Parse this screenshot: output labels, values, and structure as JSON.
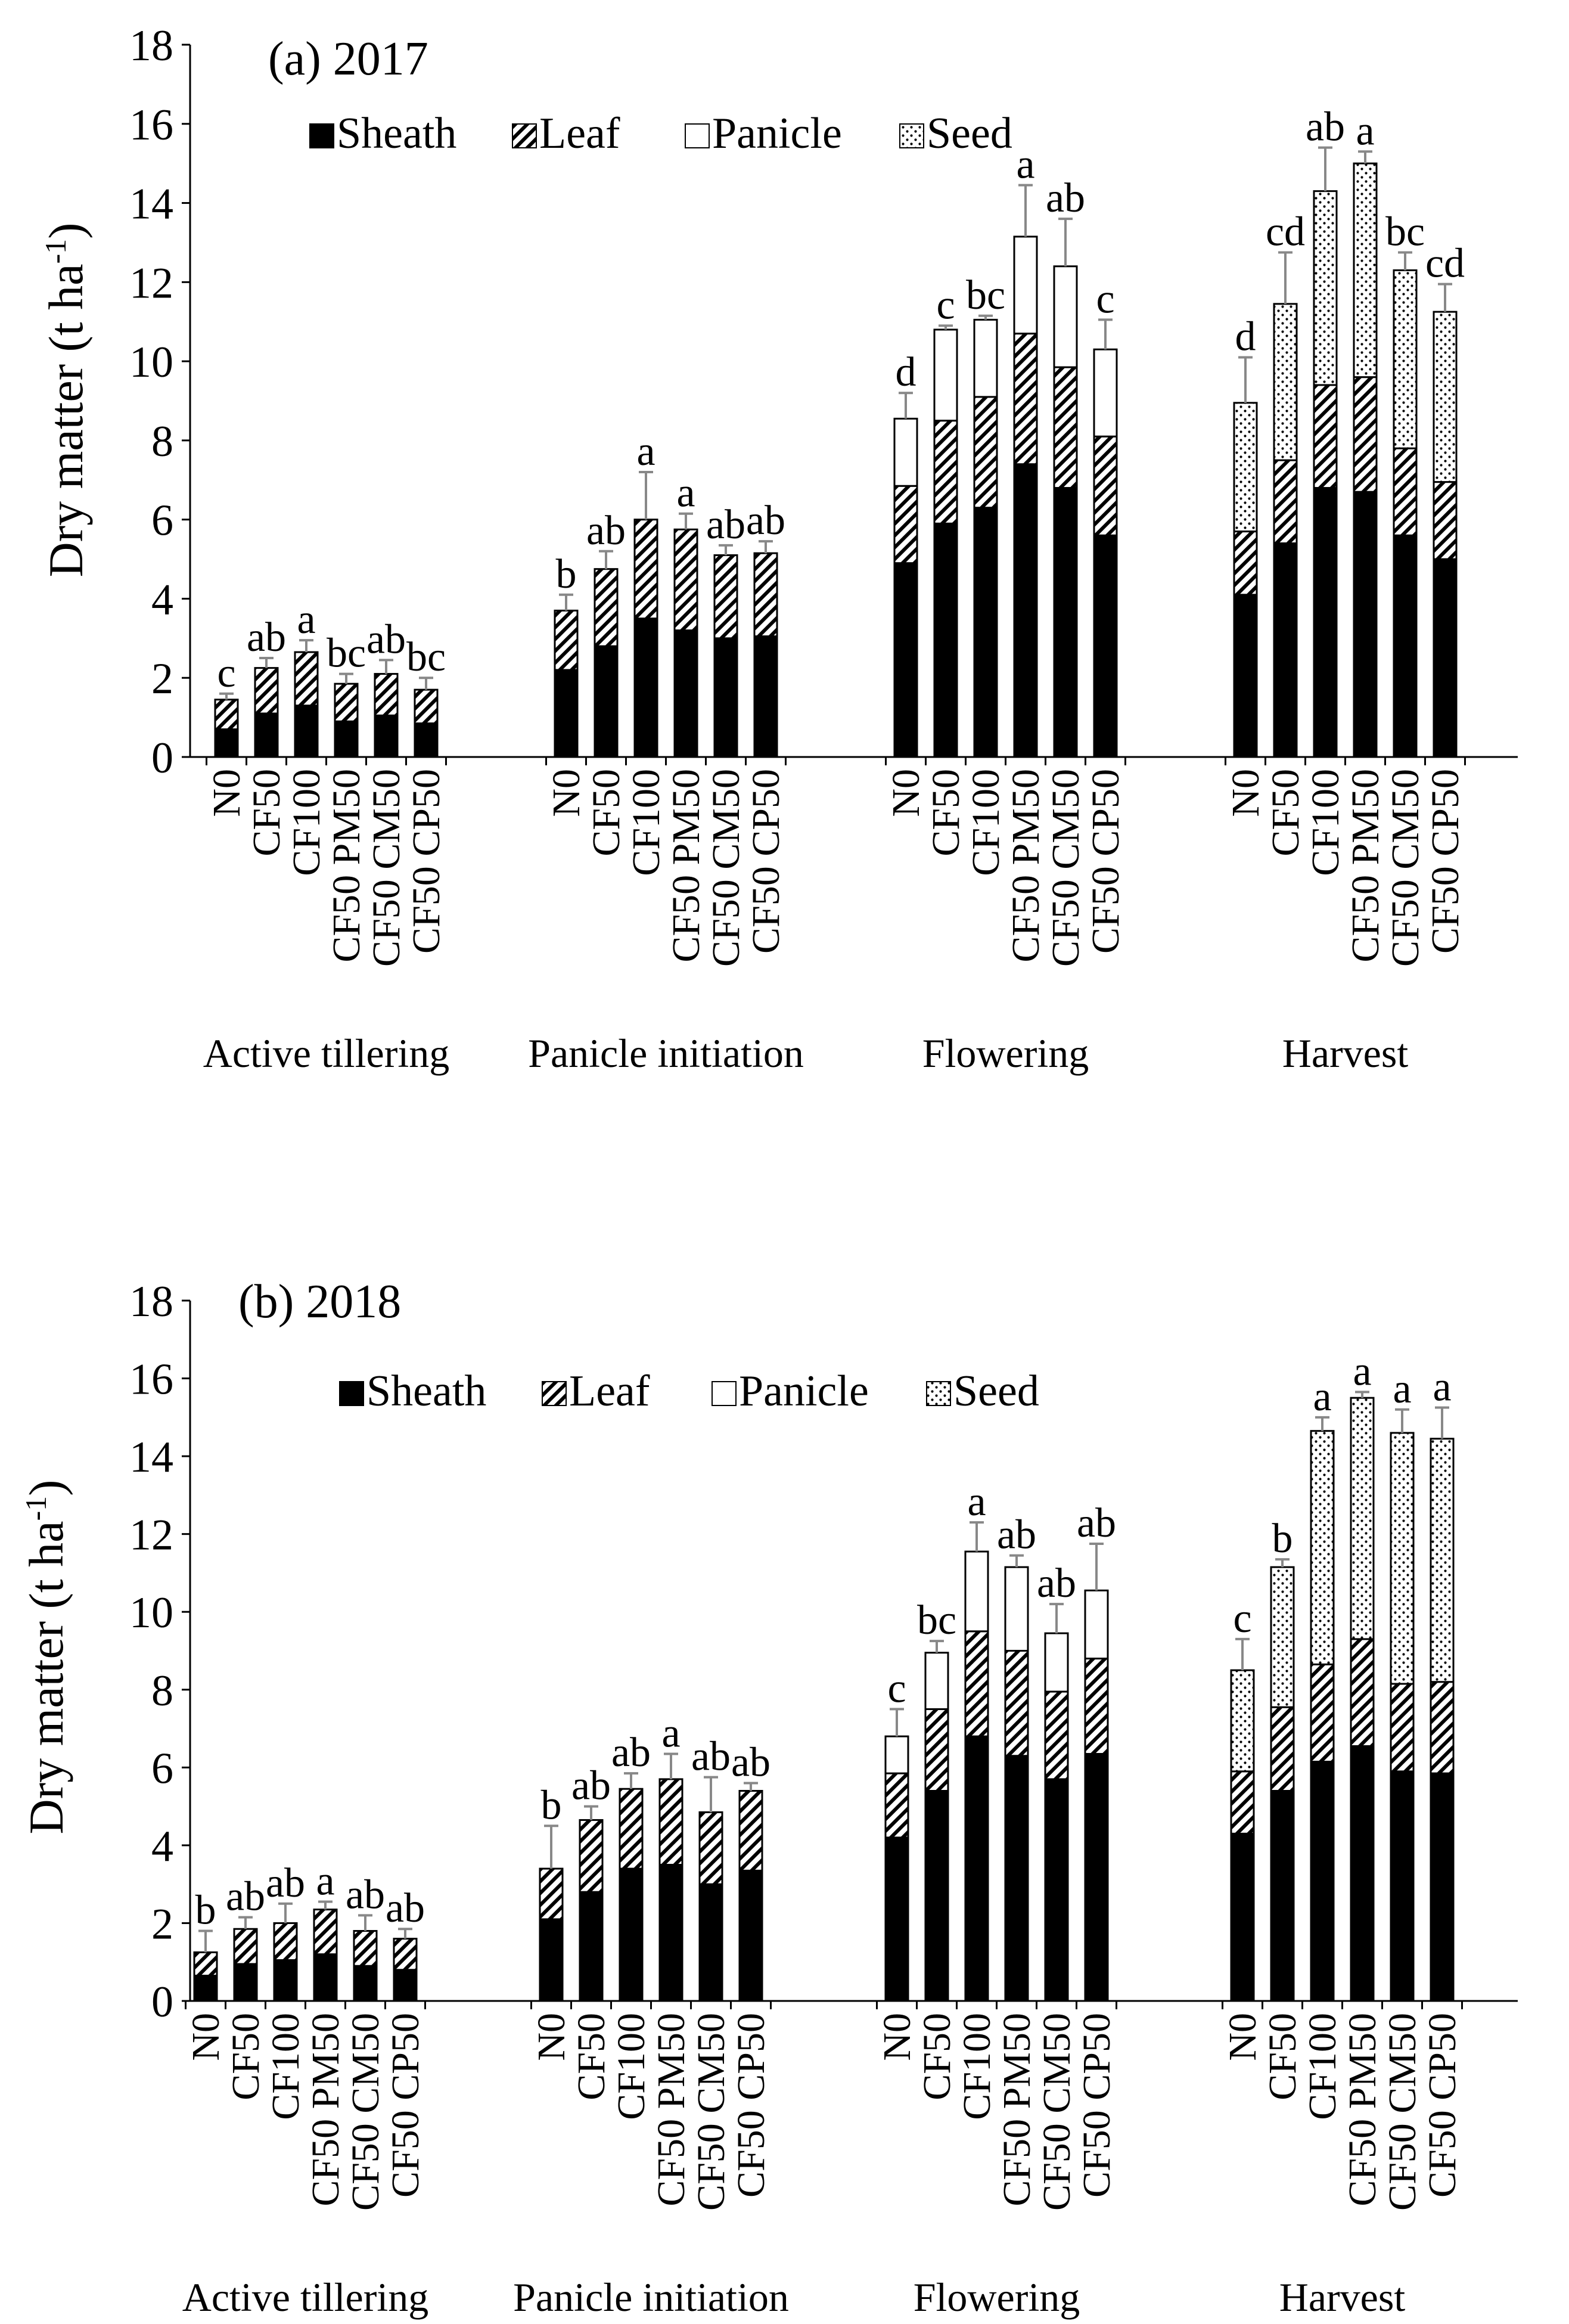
{
  "chart_data": [
    {
      "type": "bar",
      "stacked": true,
      "title": "(a) 2017",
      "ylabel": "Dry matter (t ha",
      "ylabel_unit_sup": "-1",
      "ylabel_close": ")",
      "ylim": [
        0,
        18
      ],
      "yticks": [
        "0",
        "2",
        "4",
        "6",
        "8",
        "10",
        "12",
        "14",
        "16",
        "18"
      ],
      "legend": [
        "Sheath",
        "Leaf",
        "Panicle",
        "Seed"
      ],
      "legend_position": "top-left",
      "groups": [
        "Active tillering",
        "Panicle initiation",
        "Flowering",
        "Harvest"
      ],
      "treatments": [
        "N0",
        "CF50",
        "CF100",
        "CF50 PM50",
        "CF50 CM50",
        "CF50 CP50"
      ],
      "bars": [
        {
          "sheath": 0.7,
          "leaf": 0.75,
          "panicle": 0,
          "seed": 0,
          "err": 0.15,
          "letter": "c"
        },
        {
          "sheath": 1.1,
          "leaf": 1.15,
          "panicle": 0,
          "seed": 0,
          "err": 0.25,
          "letter": "ab"
        },
        {
          "sheath": 1.3,
          "leaf": 1.35,
          "panicle": 0,
          "seed": 0,
          "err": 0.3,
          "letter": "a"
        },
        {
          "sheath": 0.9,
          "leaf": 0.95,
          "panicle": 0,
          "seed": 0,
          "err": 0.25,
          "letter": "bc"
        },
        {
          "sheath": 1.05,
          "leaf": 1.05,
          "panicle": 0,
          "seed": 0,
          "err": 0.35,
          "letter": "ab"
        },
        {
          "sheath": 0.85,
          "leaf": 0.85,
          "panicle": 0,
          "seed": 0,
          "err": 0.3,
          "letter": "bc"
        },
        {
          "sheath": 2.2,
          "leaf": 1.5,
          "panicle": 0,
          "seed": 0,
          "err": 0.4,
          "letter": "b"
        },
        {
          "sheath": 2.8,
          "leaf": 1.95,
          "panicle": 0,
          "seed": 0,
          "err": 0.45,
          "letter": "ab"
        },
        {
          "sheath": 3.5,
          "leaf": 2.5,
          "panicle": 0,
          "seed": 0,
          "err": 1.2,
          "letter": "a"
        },
        {
          "sheath": 3.2,
          "leaf": 2.55,
          "panicle": 0,
          "seed": 0,
          "err": 0.4,
          "letter": "a"
        },
        {
          "sheath": 3.0,
          "leaf": 2.1,
          "panicle": 0,
          "seed": 0,
          "err": 0.25,
          "letter": "ab"
        },
        {
          "sheath": 3.05,
          "leaf": 2.1,
          "panicle": 0,
          "seed": 0,
          "err": 0.3,
          "letter": "ab"
        },
        {
          "sheath": 4.9,
          "leaf": 1.95,
          "panicle": 1.7,
          "seed": 0,
          "err": 0.65,
          "letter": "d"
        },
        {
          "sheath": 5.9,
          "leaf": 2.6,
          "panicle": 2.3,
          "seed": 0,
          "err": 0.1,
          "letter": "c"
        },
        {
          "sheath": 6.3,
          "leaf": 2.8,
          "panicle": 1.95,
          "seed": 0,
          "err": 0.1,
          "letter": "bc"
        },
        {
          "sheath": 7.4,
          "leaf": 3.3,
          "panicle": 2.45,
          "seed": 0,
          "err": 1.3,
          "letter": "a"
        },
        {
          "sheath": 6.8,
          "leaf": 3.05,
          "panicle": 2.55,
          "seed": 0,
          "err": 1.2,
          "letter": "ab"
        },
        {
          "sheath": 5.6,
          "leaf": 2.5,
          "panicle": 2.2,
          "seed": 0,
          "err": 0.75,
          "letter": "c"
        },
        {
          "sheath": 4.1,
          "leaf": 1.6,
          "panicle": 0,
          "seed": 3.25,
          "err": 1.15,
          "letter": "d"
        },
        {
          "sheath": 5.4,
          "leaf": 2.1,
          "panicle": 0,
          "seed": 3.95,
          "err": 1.3,
          "letter": "cd"
        },
        {
          "sheath": 6.8,
          "leaf": 2.6,
          "panicle": 0,
          "seed": 4.9,
          "err": 1.1,
          "letter": "ab"
        },
        {
          "sheath": 6.7,
          "leaf": 2.9,
          "panicle": 0,
          "seed": 5.4,
          "err": 0.3,
          "letter": "a"
        },
        {
          "sheath": 5.6,
          "leaf": 2.2,
          "panicle": 0,
          "seed": 4.5,
          "err": 0.45,
          "letter": "bc"
        },
        {
          "sheath": 5.0,
          "leaf": 1.95,
          "panicle": 0,
          "seed": 4.3,
          "err": 0.7,
          "letter": "cd"
        }
      ]
    },
    {
      "type": "bar",
      "stacked": true,
      "title": "(b) 2018",
      "ylabel": "Dry matter (t ha",
      "ylabel_unit_sup": "-1",
      "ylabel_close": ")",
      "ylim": [
        0,
        18
      ],
      "yticks": [
        "0",
        "2",
        "4",
        "6",
        "8",
        "10",
        "12",
        "14",
        "16",
        "18"
      ],
      "legend": [
        "Sheath",
        "Leaf",
        "Panicle",
        "Seed"
      ],
      "legend_position": "top-left",
      "groups": [
        "Active tillering",
        "Panicle initiation",
        "Flowering",
        "Harvest"
      ],
      "treatments": [
        "N0",
        "CF50",
        "CF100",
        "CF50 PM50",
        "CF50 CM50",
        "CF50 CP50"
      ],
      "bars": [
        {
          "sheath": 0.65,
          "leaf": 0.6,
          "panicle": 0,
          "seed": 0,
          "err": 0.55,
          "letter": "b"
        },
        {
          "sheath": 0.95,
          "leaf": 0.9,
          "panicle": 0,
          "seed": 0,
          "err": 0.3,
          "letter": "ab"
        },
        {
          "sheath": 1.05,
          "leaf": 0.95,
          "panicle": 0,
          "seed": 0,
          "err": 0.5,
          "letter": "ab"
        },
        {
          "sheath": 1.2,
          "leaf": 1.15,
          "panicle": 0,
          "seed": 0,
          "err": 0.2,
          "letter": "a"
        },
        {
          "sheath": 0.9,
          "leaf": 0.9,
          "panicle": 0,
          "seed": 0,
          "err": 0.4,
          "letter": "ab"
        },
        {
          "sheath": 0.8,
          "leaf": 0.8,
          "panicle": 0,
          "seed": 0,
          "err": 0.25,
          "letter": "ab"
        },
        {
          "sheath": 2.1,
          "leaf": 1.3,
          "panicle": 0,
          "seed": 0,
          "err": 1.1,
          "letter": "b"
        },
        {
          "sheath": 2.8,
          "leaf": 1.85,
          "panicle": 0,
          "seed": 0,
          "err": 0.35,
          "letter": "ab"
        },
        {
          "sheath": 3.4,
          "leaf": 2.05,
          "panicle": 0,
          "seed": 0,
          "err": 0.4,
          "letter": "ab"
        },
        {
          "sheath": 3.5,
          "leaf": 2.2,
          "panicle": 0,
          "seed": 0,
          "err": 0.65,
          "letter": "a"
        },
        {
          "sheath": 3.0,
          "leaf": 1.85,
          "panicle": 0,
          "seed": 0,
          "err": 0.9,
          "letter": "ab"
        },
        {
          "sheath": 3.35,
          "leaf": 2.05,
          "panicle": 0,
          "seed": 0,
          "err": 0.2,
          "letter": "ab"
        },
        {
          "sheath": 4.2,
          "leaf": 1.65,
          "panicle": 0.95,
          "seed": 0,
          "err": 0.7,
          "letter": "c"
        },
        {
          "sheath": 5.4,
          "leaf": 2.1,
          "panicle": 1.45,
          "seed": 0,
          "err": 0.3,
          "letter": "bc"
        },
        {
          "sheath": 6.8,
          "leaf": 2.7,
          "panicle": 2.05,
          "seed": 0,
          "err": 0.75,
          "letter": "a"
        },
        {
          "sheath": 6.3,
          "leaf": 2.7,
          "panicle": 2.15,
          "seed": 0,
          "err": 0.3,
          "letter": "ab"
        },
        {
          "sheath": 5.7,
          "leaf": 2.25,
          "panicle": 1.5,
          "seed": 0,
          "err": 0.75,
          "letter": "ab"
        },
        {
          "sheath": 6.35,
          "leaf": 2.45,
          "panicle": 1.75,
          "seed": 0,
          "err": 1.2,
          "letter": "ab"
        },
        {
          "sheath": 4.3,
          "leaf": 1.6,
          "panicle": 0,
          "seed": 2.6,
          "err": 0.8,
          "letter": "c"
        },
        {
          "sheath": 5.4,
          "leaf": 2.15,
          "panicle": 0,
          "seed": 3.6,
          "err": 0.2,
          "letter": "b"
        },
        {
          "sheath": 6.15,
          "leaf": 2.5,
          "panicle": 0,
          "seed": 6.0,
          "err": 0.35,
          "letter": "a"
        },
        {
          "sheath": 6.55,
          "leaf": 2.75,
          "panicle": 0,
          "seed": 6.2,
          "err": 0.15,
          "letter": "a"
        },
        {
          "sheath": 5.9,
          "leaf": 2.25,
          "panicle": 0,
          "seed": 6.45,
          "err": 0.6,
          "letter": "a"
        },
        {
          "sheath": 5.85,
          "leaf": 2.35,
          "panicle": 0,
          "seed": 6.25,
          "err": 0.8,
          "letter": "a"
        }
      ]
    }
  ]
}
